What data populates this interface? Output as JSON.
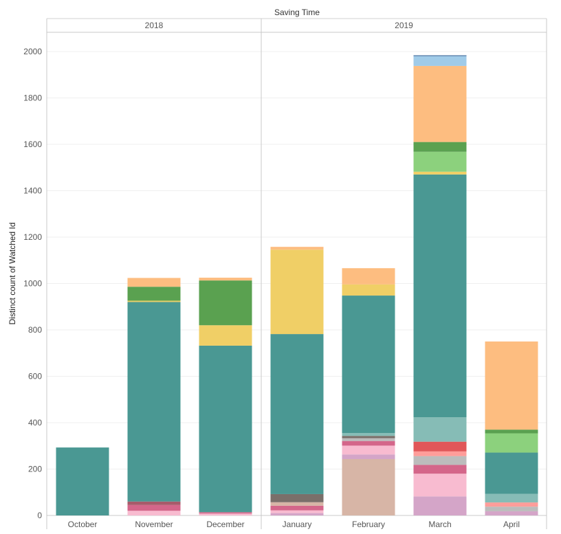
{
  "chart_data": {
    "type": "bar",
    "stacked": true,
    "title": "Saving Time",
    "ylabel": "Distinct count of Watched Id",
    "ylim": [
      0,
      2050
    ],
    "yticks": [
      0,
      200,
      400,
      600,
      800,
      1000,
      1200,
      1400,
      1600,
      1800,
      2000
    ],
    "grid": true,
    "years": [
      {
        "label": "2018",
        "months": [
          "October",
          "November",
          "December"
        ]
      },
      {
        "label": "2019",
        "months": [
          "January",
          "February",
          "March",
          "April"
        ]
      }
    ],
    "categories": [
      "October",
      "November",
      "December",
      "January",
      "February",
      "March",
      "April"
    ],
    "bars": [
      {
        "month": "October",
        "segments": [
          {
            "value": 293,
            "color": "#4a9893"
          }
        ]
      },
      {
        "month": "November",
        "segments": [
          {
            "value": 20,
            "color": "#f8bbd0"
          },
          {
            "value": 25,
            "color": "#d4668a"
          },
          {
            "value": 15,
            "color": "#a85a6a"
          },
          {
            "value": 860,
            "color": "#4a9893"
          },
          {
            "value": 6,
            "color": "#e8cf6a"
          },
          {
            "value": 60,
            "color": "#5aa150"
          },
          {
            "value": 38,
            "color": "#fdbd80"
          }
        ]
      },
      {
        "month": "December",
        "segments": [
          {
            "value": 8,
            "color": "#f8bbd0"
          },
          {
            "value": 6,
            "color": "#d4668a"
          },
          {
            "value": 718,
            "color": "#4a9893"
          },
          {
            "value": 88,
            "color": "#f0cf66"
          },
          {
            "value": 193,
            "color": "#5aa150"
          },
          {
            "value": 12,
            "color": "#fdbd80"
          }
        ]
      },
      {
        "month": "January",
        "segments": [
          {
            "value": 10,
            "color": "#d4a5c8"
          },
          {
            "value": 12,
            "color": "#f8bbd0"
          },
          {
            "value": 20,
            "color": "#d4668a"
          },
          {
            "value": 15,
            "color": "#d7b5a6"
          },
          {
            "value": 35,
            "color": "#7a6f6a"
          },
          {
            "value": 690,
            "color": "#4a9893"
          },
          {
            "value": 364,
            "color": "#f0cf66"
          },
          {
            "value": 12,
            "color": "#fdbd80"
          }
        ]
      },
      {
        "month": "February",
        "segments": [
          {
            "value": 243,
            "color": "#d7b5a6"
          },
          {
            "value": 20,
            "color": "#d4a5c8"
          },
          {
            "value": 38,
            "color": "#f8bbd0"
          },
          {
            "value": 20,
            "color": "#d4668a"
          },
          {
            "value": 12,
            "color": "#bcbcbc"
          },
          {
            "value": 10,
            "color": "#7a6f6a"
          },
          {
            "value": 12,
            "color": "#86bcb6"
          },
          {
            "value": 593,
            "color": "#4a9893"
          },
          {
            "value": 48,
            "color": "#f0cf66"
          },
          {
            "value": 70,
            "color": "#fdbd80"
          }
        ]
      },
      {
        "month": "March",
        "segments": [
          {
            "value": 82,
            "color": "#d4a5c8"
          },
          {
            "value": 98,
            "color": "#f8bbd0"
          },
          {
            "value": 38,
            "color": "#d4668a"
          },
          {
            "value": 38,
            "color": "#bcbcbc"
          },
          {
            "value": 20,
            "color": "#ff9d9a"
          },
          {
            "value": 42,
            "color": "#e15759"
          },
          {
            "value": 105,
            "color": "#86bcb6"
          },
          {
            "value": 1047,
            "color": "#4a9893"
          },
          {
            "value": 12,
            "color": "#f0cf66"
          },
          {
            "value": 86,
            "color": "#8cd17d"
          },
          {
            "value": 42,
            "color": "#5aa150"
          },
          {
            "value": 328,
            "color": "#fdbd80"
          },
          {
            "value": 42,
            "color": "#a0cbe8"
          },
          {
            "value": 4,
            "color": "#4e79a7"
          }
        ]
      },
      {
        "month": "April",
        "segments": [
          {
            "value": 18,
            "color": "#d4a5c8"
          },
          {
            "value": 20,
            "color": "#bcbcbc"
          },
          {
            "value": 18,
            "color": "#ff9d9a"
          },
          {
            "value": 37,
            "color": "#86bcb6"
          },
          {
            "value": 178,
            "color": "#4a9893"
          },
          {
            "value": 83,
            "color": "#8cd17d"
          },
          {
            "value": 16,
            "color": "#5aa150"
          },
          {
            "value": 380,
            "color": "#fdbd80"
          }
        ]
      }
    ]
  }
}
